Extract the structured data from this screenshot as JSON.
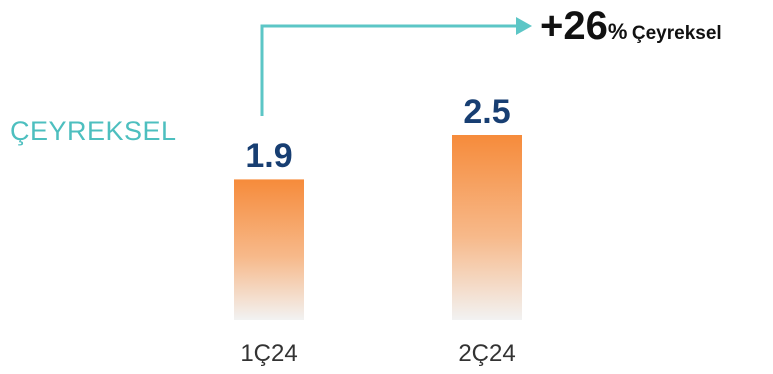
{
  "chart_data": {
    "type": "bar",
    "categories": [
      "1Ç24",
      "2Ç24"
    ],
    "values": [
      1.9,
      2.5
    ],
    "value_labels": [
      "1.9",
      "2.5"
    ],
    "series_label": "ÇEYREKSEL",
    "ylim": [
      0,
      2.5
    ],
    "grid": false,
    "annotation": {
      "number": "+26",
      "percent": "%",
      "text": "Çeyreksel",
      "arrow_from": "1Ç24",
      "arrow_to": "annotation"
    },
    "colors": {
      "bar_top": "#f68b3b",
      "bar_bottom": "#f2f2f2",
      "arrow": "#5cc6c6",
      "value_text": "#173e72",
      "series_label": "#4dbfbf"
    }
  }
}
